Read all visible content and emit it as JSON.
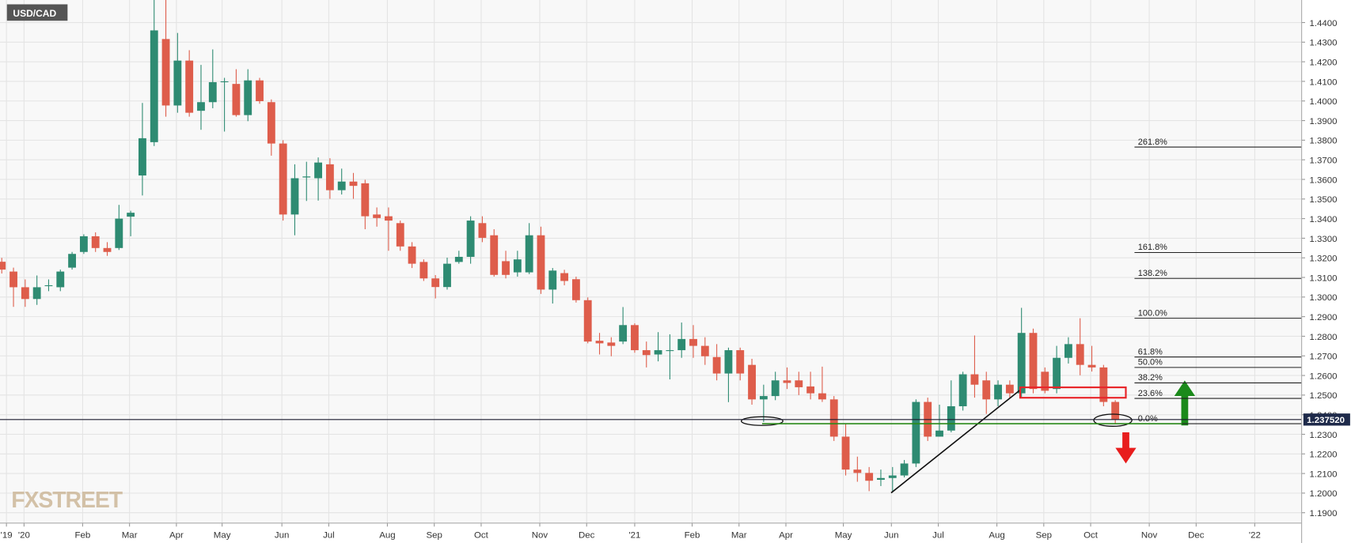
{
  "chart_data": {
    "type": "candlestick",
    "title": "USD/CAD",
    "watermark": "FXSTREET",
    "up_color": "#2e8b72",
    "down_color": "#de5d4b",
    "grid": true,
    "open": [
      1.318,
      1.313,
      1.305,
      1.299,
      1.306,
      1.305,
      1.315,
      1.323,
      1.331,
      1.325,
      1.325,
      1.341,
      1.362,
      1.379,
      1.4316,
      1.3977,
      1.4206,
      1.395,
      1.3994,
      1.4096,
      1.4087,
      1.3928,
      1.4105,
      1.3994,
      1.3783,
      1.3421,
      1.361,
      1.3606,
      1.3677,
      1.3545,
      1.3589,
      1.358,
      1.3421,
      1.3412,
      1.3377,
      1.3258,
      1.3179,
      1.3095,
      1.3051,
      1.3179,
      1.3205,
      1.3377,
      1.3315,
      1.3183,
      1.3126,
      1.3126,
      1.3315,
      1.3038,
      1.3122,
      1.3091,
      1.2984,
      1.2777,
      1.2768,
      1.2773,
      1.2857,
      1.2729,
      1.2707,
      1.2725,
      1.2729,
      1.2786,
      1.2751,
      1.2694,
      1.261,
      1.2729,
      1.2654,
      1.2478,
      1.2495,
      1.2575,
      1.2575,
      1.2544,
      1.2509,
      1.2478,
      1.2288,
      1.212,
      1.2103,
      1.2068,
      1.2077,
      1.209,
      1.2151,
      1.2465,
      1.2288,
      1.2319,
      1.2443,
      1.2606,
      1.2575,
      1.2478,
      1.2553,
      1.2509,
      1.2817,
      1.2619,
      1.2531,
      1.269,
      1.276,
      1.2654,
      1.2641,
      1.2465
    ],
    "high": [
      1.32,
      1.315,
      1.309,
      1.311,
      1.309,
      1.314,
      1.323,
      1.332,
      1.333,
      1.328,
      1.347,
      1.344,
      1.399,
      1.4515,
      1.4515,
      1.4347,
      1.4259,
      1.4184,
      1.4263,
      1.4118,
      1.4162,
      1.4162,
      1.4118,
      1.4008,
      1.38,
      1.3677,
      1.369,
      1.3712,
      1.3708,
      1.3655,
      1.3633,
      1.3598,
      1.3457,
      1.3457,
      1.339,
      1.328,
      1.3192,
      1.3112,
      1.3201,
      1.3236,
      1.3412,
      1.3412,
      1.3346,
      1.3236,
      1.3236,
      1.3377,
      1.3359,
      1.3148,
      1.3139,
      1.3104,
      1.2998,
      1.2817,
      1.2795,
      1.2949,
      1.2866,
      1.2773,
      1.2821,
      1.281,
      1.287,
      1.2857,
      1.2795,
      1.276,
      1.2742,
      1.2742,
      1.2685,
      1.2553,
      1.2619,
      1.2641,
      1.2619,
      1.2619,
      1.2645,
      1.2495,
      1.2354,
      1.2186,
      1.2133,
      1.212,
      1.2133,
      1.2169,
      1.2478,
      1.2487,
      1.2451,
      1.2575,
      1.2619,
      1.2804,
      1.2619,
      1.2575,
      1.2575,
      1.2945,
      1.2839,
      1.2641,
      1.2751,
      1.2795,
      1.2892,
      1.2751,
      1.2654,
      1.2474
    ],
    "low": [
      1.312,
      1.295,
      1.295,
      1.296,
      1.303,
      1.303,
      1.314,
      1.322,
      1.323,
      1.321,
      1.324,
      1.331,
      1.3518,
      1.377,
      1.392,
      1.394,
      1.392,
      1.3853,
      1.3963,
      1.3844,
      1.392,
      1.3897,
      1.3986,
      1.3721,
      1.339,
      1.3315,
      1.349,
      1.3492,
      1.3501,
      1.3523,
      1.3501,
      1.3346,
      1.3359,
      1.3236,
      1.3236,
      1.3148,
      1.3082,
      1.2993,
      1.3038,
      1.317,
      1.317,
      1.328,
      1.3104,
      1.3095,
      1.3104,
      1.3117,
      1.3016,
      1.2967,
      1.306,
      1.2972,
      1.2764,
      1.2707,
      1.2698,
      1.276,
      1.2716,
      1.2641,
      1.2672,
      1.258,
      1.269,
      1.269,
      1.2654,
      1.2575,
      1.2464,
      1.2575,
      1.2451,
      1.2363,
      1.2474,
      1.2531,
      1.25,
      1.2478,
      1.2465,
      1.2266,
      1.209,
      1.2058,
      1.201,
      1.2036,
      1.2007,
      1.208,
      1.2133,
      1.2266,
      1.2288,
      1.231,
      1.2421,
      1.2487,
      1.2404,
      1.2443,
      1.2487,
      1.2487,
      1.2509,
      1.2509,
      1.2509,
      1.2661,
      1.2601,
      1.262,
      1.2443,
      1.2354
    ],
    "close": [
      1.314,
      1.305,
      1.299,
      1.305,
      1.306,
      1.313,
      1.322,
      1.331,
      1.325,
      1.323,
      1.34,
      1.343,
      1.381,
      1.436,
      1.3977,
      1.4206,
      1.394,
      1.3994,
      1.4096,
      1.41,
      1.3928,
      1.4105,
      1.3999,
      1.3783,
      1.3421,
      1.3606,
      1.3615,
      1.3686,
      1.3545,
      1.3589,
      1.3567,
      1.3412,
      1.3403,
      1.339,
      1.3258,
      1.317,
      1.3095,
      1.3051,
      1.317,
      1.3205,
      1.339,
      1.3302,
      1.3113,
      1.3113,
      1.3192,
      1.3315,
      1.3038,
      1.3135,
      1.3082,
      1.2984,
      1.2773,
      1.2764,
      1.2751,
      1.2857,
      1.2729,
      1.2704,
      1.2729,
      1.2729,
      1.2786,
      1.2751,
      1.2698,
      1.261,
      1.2729,
      1.261,
      1.2478,
      1.2495,
      1.2575,
      1.2562,
      1.254,
      1.2509,
      1.2478,
      1.2288,
      1.212,
      1.2103,
      1.2063,
      1.2077,
      1.209,
      1.2151,
      1.2465,
      1.2288,
      1.2319,
      1.2443,
      1.2606,
      1.2553,
      1.2478,
      1.2553,
      1.2509,
      1.2817,
      1.2531,
      1.2522,
      1.269,
      1.276,
      1.2654,
      1.2641,
      1.2465,
      1.2375
    ],
    "xlim": [
      -0.15,
      110.9
    ],
    "xticks": [
      {
        "value": 0.4,
        "label": "'19"
      },
      {
        "value": 1.9,
        "label": "'20"
      },
      {
        "value": 6.9,
        "label": "Feb"
      },
      {
        "value": 10.9,
        "label": "Mar"
      },
      {
        "value": 14.9,
        "label": "Apr"
      },
      {
        "value": 18.8,
        "label": "May"
      },
      {
        "value": 23.9,
        "label": "Jun"
      },
      {
        "value": 27.9,
        "label": "Jul"
      },
      {
        "value": 32.9,
        "label": "Aug"
      },
      {
        "value": 36.9,
        "label": "Sep"
      },
      {
        "value": 40.9,
        "label": "Oct"
      },
      {
        "value": 45.9,
        "label": "Nov"
      },
      {
        "value": 49.9,
        "label": "Dec"
      },
      {
        "value": 54.0,
        "label": "'21"
      },
      {
        "value": 58.9,
        "label": "Feb"
      },
      {
        "value": 62.9,
        "label": "Mar"
      },
      {
        "value": 66.9,
        "label": "Apr"
      },
      {
        "value": 71.8,
        "label": "May"
      },
      {
        "value": 75.9,
        "label": "Jun"
      },
      {
        "value": 79.9,
        "label": "Jul"
      },
      {
        "value": 84.9,
        "label": "Aug"
      },
      {
        "value": 88.9,
        "label": "Sep"
      },
      {
        "value": 92.9,
        "label": "Oct"
      },
      {
        "value": 97.9,
        "label": "Nov"
      },
      {
        "value": 101.9,
        "label": "Dec"
      },
      {
        "value": 106.9,
        "label": "'22"
      }
    ],
    "ylim": [
      1.1847,
      1.4515
    ],
    "yticks": [
      {
        "value": 1.19,
        "label": "1.1900"
      },
      {
        "value": 1.2,
        "label": "1.2000"
      },
      {
        "value": 1.21,
        "label": "1.2100"
      },
      {
        "value": 1.22,
        "label": "1.2200"
      },
      {
        "value": 1.23,
        "label": "1.2300"
      },
      {
        "value": 1.24,
        "label": "1.2400"
      },
      {
        "value": 1.25,
        "label": "1.2500"
      },
      {
        "value": 1.26,
        "label": "1.2600"
      },
      {
        "value": 1.27,
        "label": "1.2700"
      },
      {
        "value": 1.28,
        "label": "1.2800"
      },
      {
        "value": 1.29,
        "label": "1.2900"
      },
      {
        "value": 1.3,
        "label": "1.3000"
      },
      {
        "value": 1.31,
        "label": "1.3100"
      },
      {
        "value": 1.32,
        "label": "1.3200"
      },
      {
        "value": 1.33,
        "label": "1.3300"
      },
      {
        "value": 1.34,
        "label": "1.3400"
      },
      {
        "value": 1.35,
        "label": "1.3500"
      },
      {
        "value": 1.36,
        "label": "1.3600"
      },
      {
        "value": 1.37,
        "label": "1.3700"
      },
      {
        "value": 1.38,
        "label": "1.3800"
      },
      {
        "value": 1.39,
        "label": "1.3900"
      },
      {
        "value": 1.4,
        "label": "1.4000"
      },
      {
        "value": 1.41,
        "label": "1.4100"
      },
      {
        "value": 1.42,
        "label": "1.4200"
      },
      {
        "value": 1.43,
        "label": "1.4300"
      },
      {
        "value": 1.44,
        "label": "1.4400"
      }
    ],
    "last_price": {
      "value": 1.23752,
      "label": "1.237520"
    },
    "fib_levels": [
      {
        "value": 1.3765,
        "label": "261.8%"
      },
      {
        "value": 1.3227,
        "label": "161.8%"
      },
      {
        "value": 1.3095,
        "label": "138.2%"
      },
      {
        "value": 1.2892,
        "label": "100.0%"
      },
      {
        "value": 1.2694,
        "label": "61.8%"
      },
      {
        "value": 1.2641,
        "label": "50.0%"
      },
      {
        "value": 1.2562,
        "label": "38.2%"
      },
      {
        "value": 1.2483,
        "label": "23.6%"
      },
      {
        "value": 1.2354,
        "label": "0.0%"
      }
    ]
  }
}
